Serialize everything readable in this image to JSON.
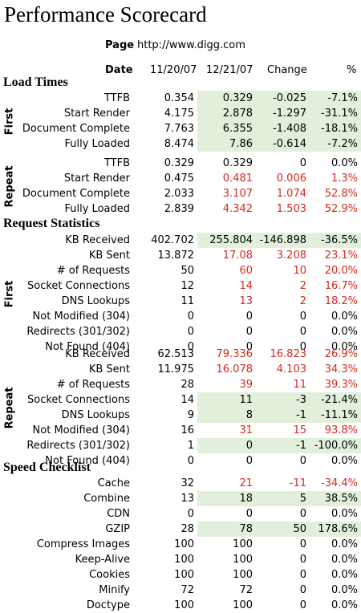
{
  "title": "Performance Scorecard",
  "page": {
    "label": "Page",
    "url": "http://www.digg.com"
  },
  "headers": {
    "date": "Date",
    "d1": "11/20/07",
    "d2": "12/21/07",
    "change": "Change",
    "pct": "%"
  },
  "colors": {
    "improved_bg": "#e2efda",
    "regressed_text": "#d42a1c"
  },
  "sections": [
    {
      "title": "Load Times",
      "groups": [
        {
          "label": "First",
          "rows": [
            {
              "label": "TTFB",
              "v1": "0.354",
              "v2": "0.329",
              "change": "-0.025",
              "pct": "-7.1%",
              "state": "improved"
            },
            {
              "label": "Start Render",
              "v1": "4.175",
              "v2": "2.878",
              "change": "-1.297",
              "pct": "-31.1%",
              "state": "improved"
            },
            {
              "label": "Document Complete",
              "v1": "7.763",
              "v2": "6.355",
              "change": "-1.408",
              "pct": "-18.1%",
              "state": "improved"
            },
            {
              "label": "Fully Loaded",
              "v1": "8.474",
              "v2": "7.86",
              "change": "-0.614",
              "pct": "-7.2%",
              "state": "improved"
            }
          ]
        },
        {
          "label": "Repeat",
          "rows": [
            {
              "label": "TTFB",
              "v1": "0.329",
              "v2": "0.329",
              "change": "0",
              "pct": "0.0%",
              "state": "same"
            },
            {
              "label": "Start Render",
              "v1": "0.475",
              "v2": "0.481",
              "change": "0.006",
              "pct": "1.3%",
              "state": "worse"
            },
            {
              "label": "Document Complete",
              "v1": "2.033",
              "v2": "3.107",
              "change": "1.074",
              "pct": "52.8%",
              "state": "worse"
            },
            {
              "label": "Fully Loaded",
              "v1": "2.839",
              "v2": "4.342",
              "change": "1.503",
              "pct": "52.9%",
              "state": "worse"
            }
          ]
        }
      ]
    },
    {
      "title": "Request Statistics",
      "groups": [
        {
          "label": "First",
          "rows": [
            {
              "label": "KB Received",
              "v1": "402.702",
              "v2": "255.804",
              "change": "-146.898",
              "pct": "-36.5%",
              "state": "improved"
            },
            {
              "label": "KB Sent",
              "v1": "13.872",
              "v2": "17.08",
              "change": "3.208",
              "pct": "23.1%",
              "state": "worse"
            },
            {
              "label": "# of Requests",
              "v1": "50",
              "v2": "60",
              "change": "10",
              "pct": "20.0%",
              "state": "worse"
            },
            {
              "label": "Socket Connections",
              "v1": "12",
              "v2": "14",
              "change": "2",
              "pct": "16.7%",
              "state": "worse"
            },
            {
              "label": "DNS Lookups",
              "v1": "11",
              "v2": "13",
              "change": "2",
              "pct": "18.2%",
              "state": "worse"
            },
            {
              "label": "Not Modified (304)",
              "v1": "0",
              "v2": "0",
              "change": "0",
              "pct": "0.0%",
              "state": "same"
            },
            {
              "label": "Redirects (301/302)",
              "v1": "0",
              "v2": "0",
              "change": "0",
              "pct": "0.0%",
              "state": "same"
            },
            {
              "label": "Not Found (404)",
              "v1": "0",
              "v2": "0",
              "change": "0",
              "pct": "0.0%",
              "state": "same"
            }
          ]
        },
        {
          "label": "Repeat",
          "rows": [
            {
              "label": "KB Received",
              "v1": "62.513",
              "v2": "79.336",
              "change": "16.823",
              "pct": "26.9%",
              "state": "worse"
            },
            {
              "label": "KB Sent",
              "v1": "11.975",
              "v2": "16.078",
              "change": "4.103",
              "pct": "34.3%",
              "state": "worse"
            },
            {
              "label": "# of Requests",
              "v1": "28",
              "v2": "39",
              "change": "11",
              "pct": "39.3%",
              "state": "worse"
            },
            {
              "label": "Socket Connections",
              "v1": "14",
              "v2": "11",
              "change": "-3",
              "pct": "-21.4%",
              "state": "improved"
            },
            {
              "label": "DNS Lookups",
              "v1": "9",
              "v2": "8",
              "change": "-1",
              "pct": "-11.1%",
              "state": "improved"
            },
            {
              "label": "Not Modified (304)",
              "v1": "16",
              "v2": "31",
              "change": "15",
              "pct": "93.8%",
              "state": "worse"
            },
            {
              "label": "Redirects (301/302)",
              "v1": "1",
              "v2": "0",
              "change": "-1",
              "pct": "-100.0%",
              "state": "improved"
            },
            {
              "label": "Not Found (404)",
              "v1": "0",
              "v2": "0",
              "change": "0",
              "pct": "0.0%",
              "state": "same"
            }
          ]
        }
      ]
    },
    {
      "title": "Speed Checklist",
      "groups": [
        {
          "label": "",
          "rows": [
            {
              "label": "Cache",
              "v1": "32",
              "v2": "21",
              "change": "-11",
              "pct": "-34.4%",
              "state": "worse"
            },
            {
              "label": "Combine",
              "v1": "13",
              "v2": "18",
              "change": "5",
              "pct": "38.5%",
              "state": "improved"
            },
            {
              "label": "CDN",
              "v1": "0",
              "v2": "0",
              "change": "0",
              "pct": "0.0%",
              "state": "same"
            },
            {
              "label": "GZIP",
              "v1": "28",
              "v2": "78",
              "change": "50",
              "pct": "178.6%",
              "state": "improved"
            },
            {
              "label": "Compress Images",
              "v1": "100",
              "v2": "100",
              "change": "0",
              "pct": "0.0%",
              "state": "same"
            },
            {
              "label": "Keep-Alive",
              "v1": "100",
              "v2": "100",
              "change": "0",
              "pct": "0.0%",
              "state": "same"
            },
            {
              "label": "Cookies",
              "v1": "100",
              "v2": "100",
              "change": "0",
              "pct": "0.0%",
              "state": "same"
            },
            {
              "label": "Minify",
              "v1": "72",
              "v2": "72",
              "change": "0",
              "pct": "0.0%",
              "state": "same"
            },
            {
              "label": "Doctype",
              "v1": "100",
              "v2": "100",
              "change": "0",
              "pct": "0.0%",
              "state": "same"
            }
          ]
        }
      ]
    }
  ]
}
